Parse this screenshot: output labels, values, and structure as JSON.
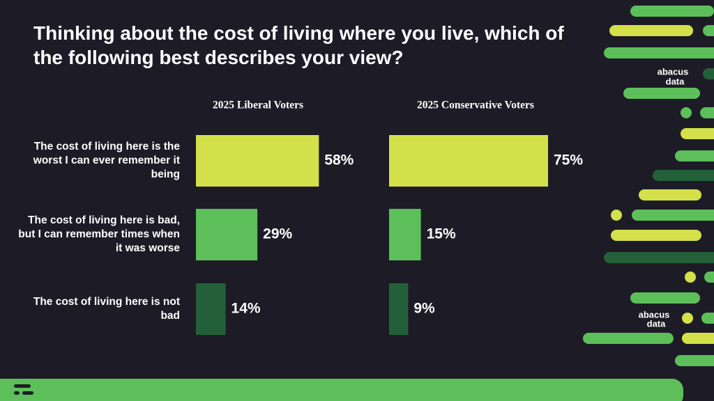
{
  "title": "Thinking about the cost of living where you live, which of the following best describes your view?",
  "logo": {
    "top": "abacus",
    "bottom": "data"
  },
  "chart_data": {
    "type": "bar",
    "orientation": "horizontal",
    "categories": [
      "The cost of living here is the worst I can ever remember it being",
      "The cost of living here is bad, but I can remember times when it was worse",
      "The cost of living here is not bad"
    ],
    "colors": [
      "#d4e04a",
      "#5cbf5a",
      "#23603a"
    ],
    "series": [
      {
        "name": "2025 Liberal Voters",
        "values": [
          58,
          29,
          14
        ],
        "value_labels": [
          "58%",
          "29%",
          "14%"
        ]
      },
      {
        "name": "2025 Conservative Voters",
        "values": [
          75,
          15,
          9
        ],
        "value_labels": [
          "75%",
          "15%",
          "9%"
        ]
      }
    ]
  }
}
